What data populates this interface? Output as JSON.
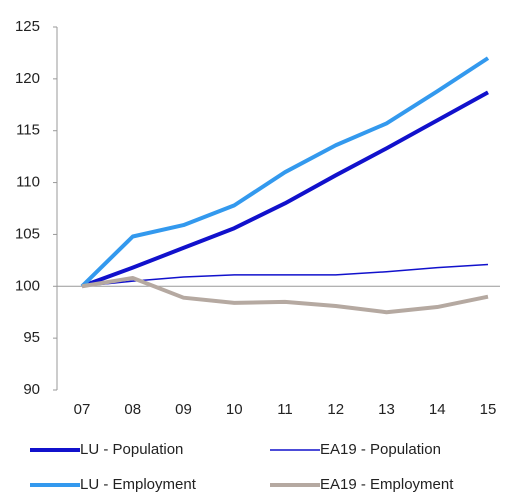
{
  "chart_data": {
    "type": "line",
    "categories": [
      "07",
      "08",
      "09",
      "10",
      "11",
      "12",
      "13",
      "14",
      "15"
    ],
    "series": [
      {
        "name": "LU - Population",
        "color": "#1111cc",
        "line_width": 4,
        "values": [
          100,
          101.8,
          103.7,
          105.6,
          108,
          110.7,
          113.3,
          116,
          118.7
        ]
      },
      {
        "name": "EA19 - Population",
        "color": "#1111cc",
        "line_width": 1.5,
        "values": [
          100,
          100.5,
          100.9,
          101.1,
          101.1,
          101.1,
          101.4,
          101.8,
          102.1
        ]
      },
      {
        "name": "LU - Employment",
        "color": "#3399ee",
        "line_width": 4,
        "values": [
          100,
          104.8,
          105.9,
          107.8,
          111,
          113.6,
          115.7,
          118.8,
          122
        ]
      },
      {
        "name": "EA19 - Employment",
        "color": "#b5a9a1",
        "line_width": 4,
        "values": [
          100,
          100.8,
          98.9,
          98.4,
          98.5,
          98.1,
          97.5,
          98,
          99
        ]
      }
    ],
    "ylim": [
      90,
      125
    ],
    "yticks": [
      90,
      95,
      100,
      105,
      110,
      115,
      120,
      125
    ],
    "x_axis_at": 100,
    "legend": "bottom"
  }
}
